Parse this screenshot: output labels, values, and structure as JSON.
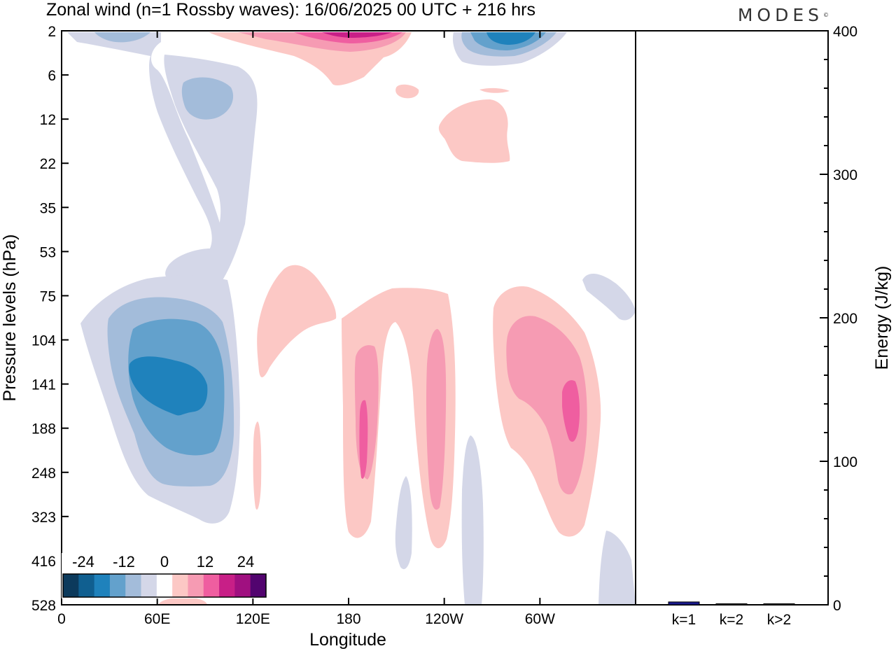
{
  "header": {
    "title": "Zonal wind (n=1 Rossby waves):  16/06/2025  00 UTC  + 216 hrs",
    "logo": "MODES",
    "logo_mark": "©"
  },
  "chart_data": [
    {
      "type": "heatmap",
      "title": "Zonal wind (n=1 Rossby waves):  16/06/2025  00 UTC  + 216 hrs",
      "xlabel": "Longitude",
      "ylabel": "Pressure levels (hPa)",
      "x_ticks": [
        "0",
        "60E",
        "120E",
        "180",
        "120W",
        "60W"
      ],
      "y_ticks": [
        "2",
        "6",
        "12",
        "22",
        "35",
        "53",
        "75",
        "104",
        "141",
        "188",
        "248",
        "323",
        "416",
        "528"
      ],
      "colorbar": {
        "tick_labels": [
          "-24",
          "-12",
          "0",
          "12",
          "24"
        ],
        "levels": [
          -30,
          -25,
          -20,
          -15,
          -10,
          -5,
          0,
          5,
          10,
          15,
          20,
          25,
          30
        ],
        "colors": [
          "#0c3a5c",
          "#105f90",
          "#1f82bc",
          "#63a1cc",
          "#a3bcda",
          "#d4d7e8",
          "#ffffff",
          "#fcc8c5",
          "#f69bb3",
          "#ef5ea0",
          "#c81f87",
          "#a01080",
          "#52046f"
        ]
      }
    },
    {
      "type": "bar",
      "ylabel": "Energy (J/kg)",
      "categories": [
        "k=1",
        "k=2",
        "k>2"
      ],
      "values": [
        2,
        0.5,
        0.5
      ],
      "ylim": [
        0,
        400
      ],
      "y_ticks": [
        "0",
        "100",
        "200",
        "300",
        "400"
      ],
      "bar_color": "#1a1a8c"
    }
  ]
}
